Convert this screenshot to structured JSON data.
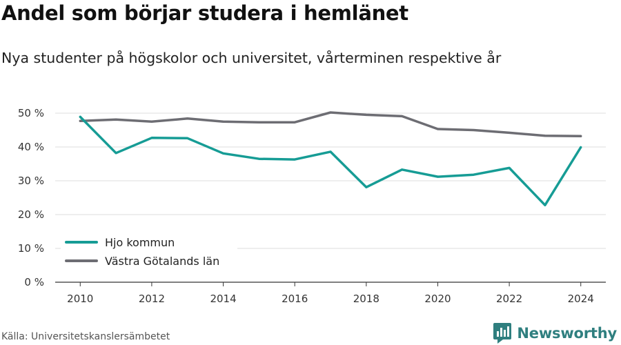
{
  "header": {
    "title": "Andel som börjar studera i hemlänet",
    "subtitle": "Nya studenter på högskolor och universitet, vårterminen respektive år"
  },
  "footer": {
    "source": "Källa: Universitetskanslersämbetet",
    "brand": "Newsworthy",
    "logo_icon": "bar-chart-logo-icon"
  },
  "colors": {
    "hjo": "#169c95",
    "vastra": "#6d6d73",
    "grid": "#dcdcdc",
    "axis": "#333333",
    "brand": "#2f7f7f"
  },
  "chart_data": {
    "type": "line",
    "x": [
      2010,
      2011,
      2012,
      2013,
      2014,
      2015,
      2016,
      2017,
      2018,
      2019,
      2020,
      2021,
      2022,
      2023,
      2024
    ],
    "series": [
      {
        "name": "Hjo kommun",
        "values": [
          48.9,
          38.2,
          42.7,
          42.6,
          38.1,
          36.5,
          36.3,
          38.6,
          28.1,
          33.3,
          31.2,
          31.8,
          33.8,
          22.8,
          39.9
        ]
      },
      {
        "name": "Västra Götalands län",
        "values": [
          47.7,
          48.1,
          47.5,
          48.4,
          47.5,
          47.3,
          47.3,
          50.2,
          49.5,
          49.1,
          45.3,
          45.0,
          44.2,
          43.3,
          43.2
        ]
      }
    ],
    "y_ticks": [
      "0 %",
      "10 %",
      "20 %",
      "30 %",
      "40 %",
      "50 %"
    ],
    "y_tick_values": [
      0,
      10,
      20,
      30,
      40,
      50
    ],
    "x_ticks": [
      "2010",
      "2012",
      "2014",
      "2016",
      "2018",
      "2020",
      "2022",
      "2024"
    ],
    "x_tick_values": [
      2010,
      2012,
      2014,
      2016,
      2018,
      2020,
      2022,
      2024
    ],
    "ylim": [
      0,
      50
    ],
    "xlim": [
      2009.3,
      2024.7
    ],
    "xlabel": "",
    "ylabel": "",
    "grid": true,
    "legend": "bottom-left"
  }
}
